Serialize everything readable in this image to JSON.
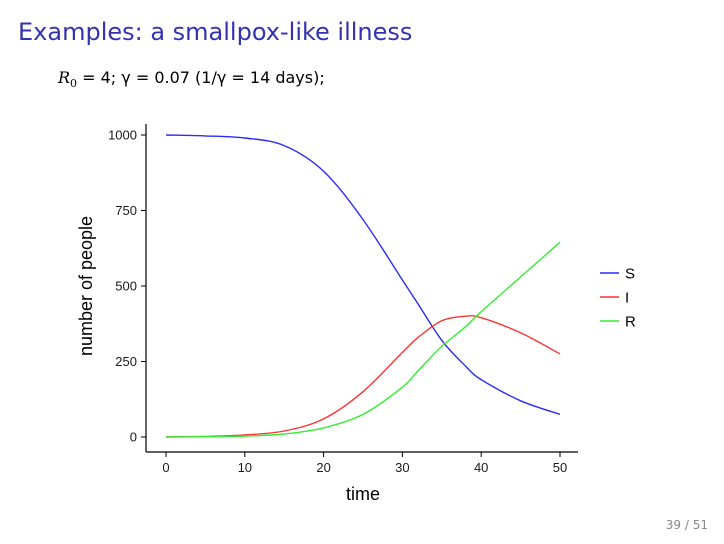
{
  "slide": {
    "title": "Examples: a smallpox-like illness",
    "subtitle": {
      "r_symbol": "R",
      "r_sub": "0",
      "equation": " = 4; γ = 0.07 (1/γ = 14 days);"
    },
    "page_number": "39 / 51"
  },
  "chart_data": {
    "type": "line",
    "title": "",
    "xlabel": "time",
    "ylabel": "number of people",
    "xlim": [
      0,
      50
    ],
    "ylim": [
      0,
      1000
    ],
    "x_ticks": [
      0,
      10,
      20,
      30,
      40,
      50
    ],
    "y_ticks": [
      0,
      250,
      500,
      750,
      1000
    ],
    "grid": false,
    "legend_position": "right",
    "x": [
      0,
      5,
      10,
      15,
      20,
      25,
      30,
      32,
      35,
      38,
      40,
      45,
      50
    ],
    "series": [
      {
        "name": "S",
        "color": "#2b2bff",
        "values": [
          1000,
          997,
          990,
          965,
          880,
          720,
          520,
          440,
          320,
          235,
          190,
          120,
          75
        ]
      },
      {
        "name": "I",
        "color": "#ff3333",
        "values": [
          0,
          2,
          7,
          20,
          60,
          150,
          280,
          330,
          385,
          400,
          395,
          345,
          275
        ]
      },
      {
        "name": "R",
        "color": "#33ee33",
        "values": [
          0,
          1,
          3,
          10,
          30,
          75,
          165,
          220,
          300,
          365,
          415,
          530,
          645
        ]
      }
    ]
  }
}
